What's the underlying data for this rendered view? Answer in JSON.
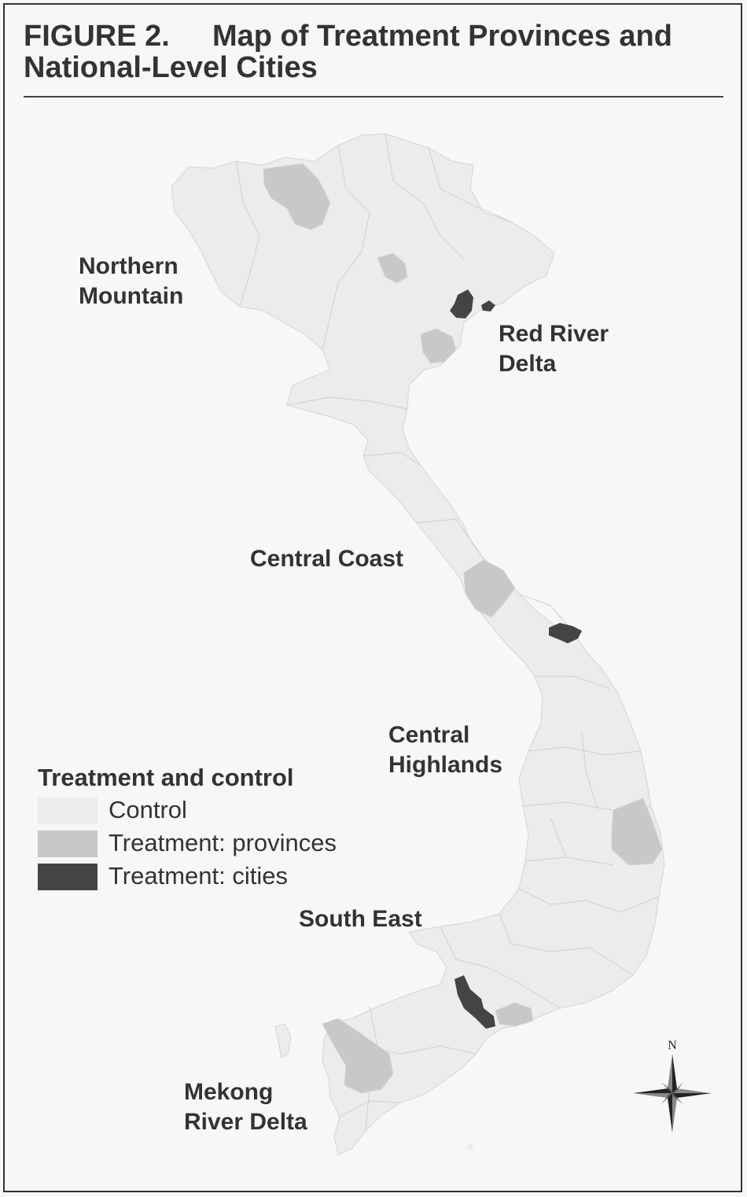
{
  "title": {
    "figure_number": "FIGURE 2.",
    "text_line1": "Map of Treatment Provinces and",
    "text_line2": "National-Level Cities"
  },
  "regions": [
    {
      "id": "northern-mountain",
      "label": "Northern\nMountain"
    },
    {
      "id": "red-river-delta",
      "label": "Red River\nDelta"
    },
    {
      "id": "central-coast",
      "label": "Central Coast"
    },
    {
      "id": "central-highlands",
      "label": "Central\nHighlands"
    },
    {
      "id": "south-east",
      "label": "South East"
    },
    {
      "id": "mekong-river-delta",
      "label": "Mekong\nRiver Delta"
    }
  ],
  "legend": {
    "heading": "Treatment and control",
    "items": [
      {
        "label": "Control",
        "color": "#ececec"
      },
      {
        "label": "Treatment: provinces",
        "color": "#c8c8c8"
      },
      {
        "label": "Treatment: cities",
        "color": "#444444"
      }
    ]
  },
  "compass": {
    "north_label": "N"
  },
  "colors": {
    "control": "#ececec",
    "treatment_province": "#c8c8c8",
    "treatment_city": "#444444",
    "border": "#d4d4d4"
  }
}
